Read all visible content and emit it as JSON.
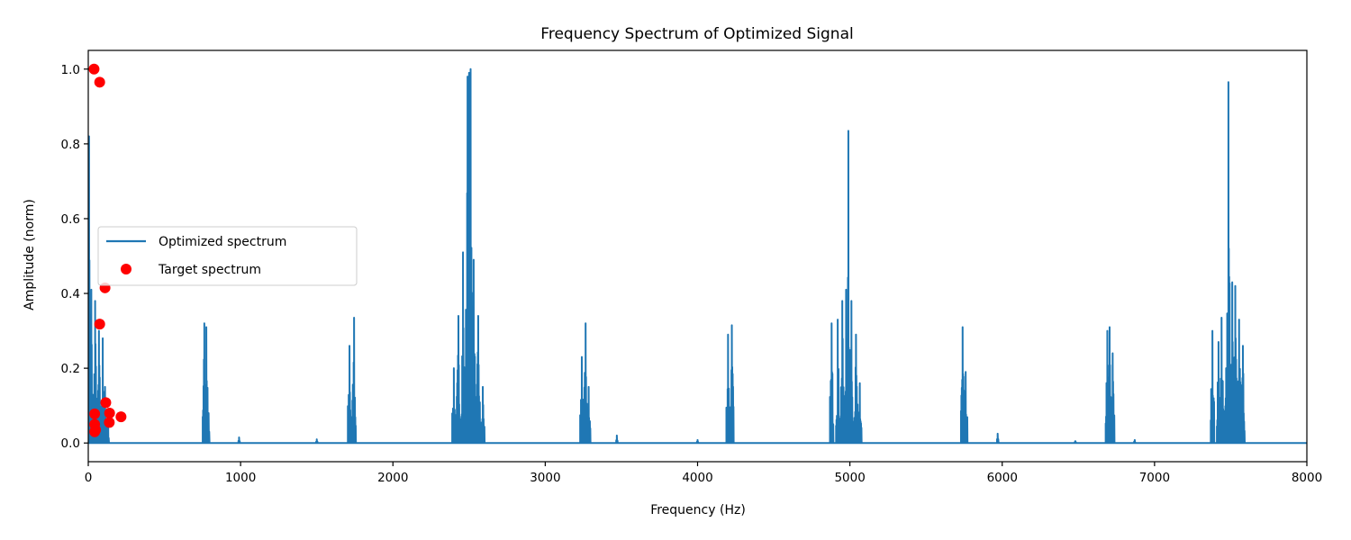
{
  "chart_data": {
    "type": "line",
    "title": "Frequency Spectrum of Optimized Signal",
    "xlabel": "Frequency (Hz)",
    "ylabel": "Amplitude (norm)",
    "xlim": [
      0,
      8000
    ],
    "ylim": [
      -0.05,
      1.05
    ],
    "xticks": [
      0,
      1000,
      2000,
      3000,
      4000,
      5000,
      6000,
      7000,
      8000
    ],
    "yticks": [
      0.0,
      0.2,
      0.4,
      0.6,
      0.8,
      1.0
    ],
    "xtick_labels": [
      "0",
      "1000",
      "2000",
      "3000",
      "4000",
      "5000",
      "6000",
      "7000",
      "8000"
    ],
    "ytick_labels": [
      "0.0",
      "0.2",
      "0.4",
      "0.6",
      "0.8",
      "1.0"
    ],
    "grid": false,
    "legend_position": "center-left",
    "series": [
      {
        "name": "Optimized spectrum",
        "kind": "line",
        "color": "#1f77b4",
        "peaks": [
          {
            "x": 5,
            "y": 0.82
          },
          {
            "x": 20,
            "y": 0.41
          },
          {
            "x": 45,
            "y": 0.38
          },
          {
            "x": 70,
            "y": 0.3
          },
          {
            "x": 95,
            "y": 0.28
          },
          {
            "x": 110,
            "y": 0.15
          },
          {
            "x": 130,
            "y": 0.08
          },
          {
            "x": 762,
            "y": 0.32
          },
          {
            "x": 775,
            "y": 0.31
          },
          {
            "x": 790,
            "y": 0.08
          },
          {
            "x": 990,
            "y": 0.015
          },
          {
            "x": 1500,
            "y": 0.01
          },
          {
            "x": 1715,
            "y": 0.26
          },
          {
            "x": 1745,
            "y": 0.335
          },
          {
            "x": 2400,
            "y": 0.2
          },
          {
            "x": 2430,
            "y": 0.34
          },
          {
            "x": 2460,
            "y": 0.51
          },
          {
            "x": 2490,
            "y": 0.98
          },
          {
            "x": 2500,
            "y": 0.99
          },
          {
            "x": 2510,
            "y": 1.0
          },
          {
            "x": 2530,
            "y": 0.49
          },
          {
            "x": 2560,
            "y": 0.34
          },
          {
            "x": 2590,
            "y": 0.15
          },
          {
            "x": 3240,
            "y": 0.23
          },
          {
            "x": 3265,
            "y": 0.32
          },
          {
            "x": 3285,
            "y": 0.15
          },
          {
            "x": 3470,
            "y": 0.02
          },
          {
            "x": 4000,
            "y": 0.008
          },
          {
            "x": 4200,
            "y": 0.29
          },
          {
            "x": 4225,
            "y": 0.315
          },
          {
            "x": 4880,
            "y": 0.32
          },
          {
            "x": 4920,
            "y": 0.33
          },
          {
            "x": 4950,
            "y": 0.38
          },
          {
            "x": 4975,
            "y": 0.41
          },
          {
            "x": 4990,
            "y": 0.835
          },
          {
            "x": 5010,
            "y": 0.38
          },
          {
            "x": 5040,
            "y": 0.29
          },
          {
            "x": 5065,
            "y": 0.16
          },
          {
            "x": 5740,
            "y": 0.31
          },
          {
            "x": 5760,
            "y": 0.19
          },
          {
            "x": 5970,
            "y": 0.025
          },
          {
            "x": 6480,
            "y": 0.005
          },
          {
            "x": 6690,
            "y": 0.3
          },
          {
            "x": 6705,
            "y": 0.31
          },
          {
            "x": 6725,
            "y": 0.24
          },
          {
            "x": 6870,
            "y": 0.008
          },
          {
            "x": 7380,
            "y": 0.3
          },
          {
            "x": 7420,
            "y": 0.27
          },
          {
            "x": 7440,
            "y": 0.335
          },
          {
            "x": 7470,
            "y": 0.2
          },
          {
            "x": 7485,
            "y": 0.965
          },
          {
            "x": 7510,
            "y": 0.43
          },
          {
            "x": 7530,
            "y": 0.42
          },
          {
            "x": 7555,
            "y": 0.33
          },
          {
            "x": 7580,
            "y": 0.26
          }
        ]
      },
      {
        "name": "Target spectrum",
        "kind": "scatter",
        "color": "#ff0000",
        "points": [
          {
            "x": 38,
            "y": 1.0
          },
          {
            "x": 75,
            "y": 0.965
          },
          {
            "x": 110,
            "y": 0.415
          },
          {
            "x": 75,
            "y": 0.318
          },
          {
            "x": 115,
            "y": 0.108
          },
          {
            "x": 140,
            "y": 0.08
          },
          {
            "x": 215,
            "y": 0.07
          },
          {
            "x": 42,
            "y": 0.078
          },
          {
            "x": 138,
            "y": 0.055
          },
          {
            "x": 42,
            "y": 0.05
          },
          {
            "x": 48,
            "y": 0.035
          },
          {
            "x": 42,
            "y": 0.03
          }
        ]
      }
    ]
  }
}
